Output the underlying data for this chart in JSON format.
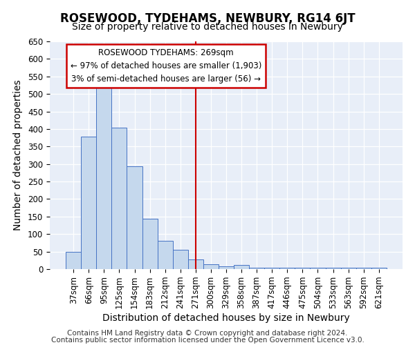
{
  "title": "ROSEWOOD, TYDEHAMS, NEWBURY, RG14 6JT",
  "subtitle": "Size of property relative to detached houses in Newbury",
  "xlabel": "Distribution of detached houses by size in Newbury",
  "ylabel": "Number of detached properties",
  "categories": [
    "37sqm",
    "66sqm",
    "95sqm",
    "125sqm",
    "154sqm",
    "183sqm",
    "212sqm",
    "241sqm",
    "271sqm",
    "300sqm",
    "329sqm",
    "358sqm",
    "387sqm",
    "417sqm",
    "446sqm",
    "475sqm",
    "504sqm",
    "533sqm",
    "563sqm",
    "592sqm",
    "621sqm"
  ],
  "values": [
    50,
    378,
    520,
    403,
    293,
    143,
    80,
    55,
    28,
    13,
    7,
    12,
    3,
    3,
    3,
    3,
    3,
    3,
    3,
    3,
    3
  ],
  "bar_color": "#c5d8ed",
  "bar_edge_color": "#4472c4",
  "marker_index": 8,
  "marker_color": "#cc0000",
  "annotation_title": "ROSEWOOD TYDEHAMS: 269sqm",
  "annotation_line1": "← 97% of detached houses are smaller (1,903)",
  "annotation_line2": "3% of semi-detached houses are larger (56) →",
  "annotation_box_color": "#cc0000",
  "ylim": [
    0,
    650
  ],
  "yticks": [
    0,
    50,
    100,
    150,
    200,
    250,
    300,
    350,
    400,
    450,
    500,
    550,
    600,
    650
  ],
  "bg_color": "#e8eef8",
  "footer_line1": "Contains HM Land Registry data © Crown copyright and database right 2024.",
  "footer_line2": "Contains public sector information licensed under the Open Government Licence v3.0.",
  "title_fontsize": 12,
  "subtitle_fontsize": 10,
  "axis_label_fontsize": 10,
  "tick_fontsize": 8.5,
  "footer_fontsize": 7.5
}
